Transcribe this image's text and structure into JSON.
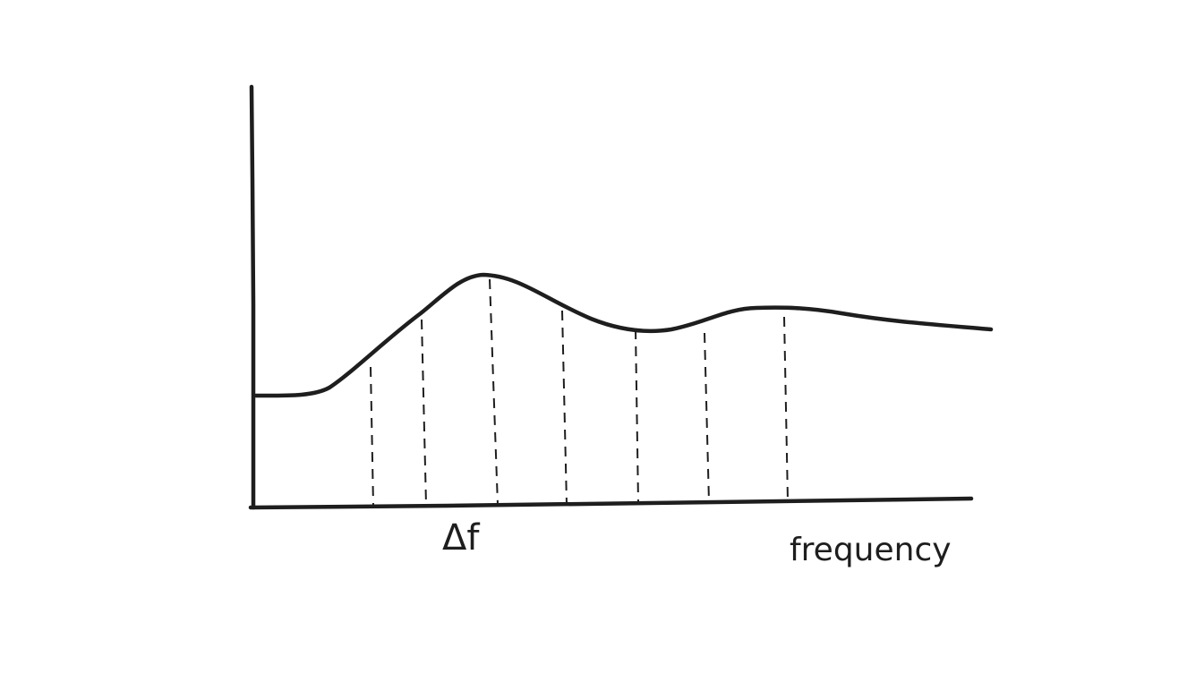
{
  "diagram": {
    "marker_label": "Δf",
    "x_axis_label": "frequency",
    "stroke_color": "#1e1e1e",
    "background_color": "#ffffff",
    "divider_style": "dashed",
    "divider_count": 7
  }
}
